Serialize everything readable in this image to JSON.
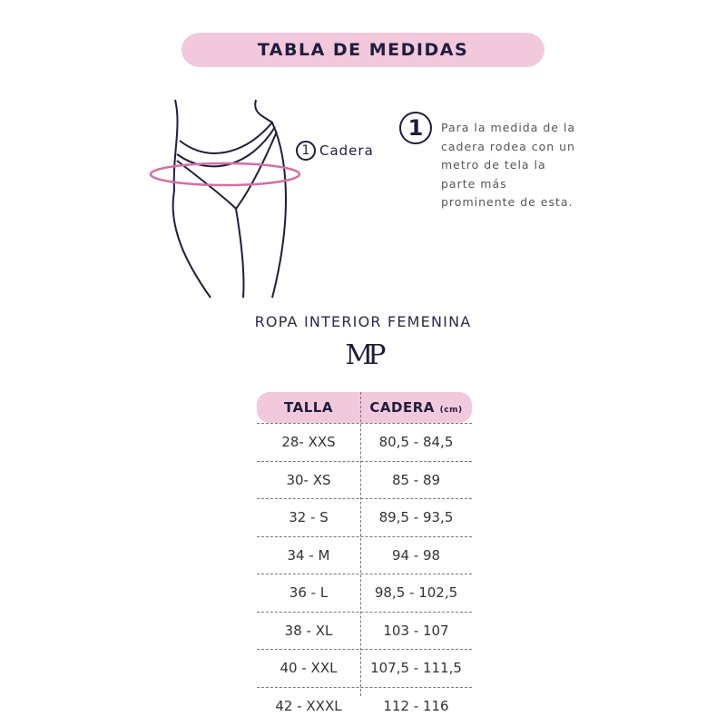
{
  "title": "TABLA DE MEDIDAS",
  "diagram": {
    "marker": "1",
    "label": "Cadera"
  },
  "instruction": {
    "number": "1",
    "text": "Para la medida de la cadera rodea con un metro de tela la parte más prominente de esta."
  },
  "subtitle": "ROPA INTERIOR FEMENINA",
  "logo": "MP",
  "table": {
    "headers": [
      "TALLA",
      "CADERA"
    ],
    "unit": "(cm)",
    "rows": [
      [
        "28-  XXS",
        "80,5 -  84,5"
      ],
      [
        "30-   XS",
        "85 -  89"
      ],
      [
        "32 -  S",
        "89,5 - 93,5"
      ],
      [
        "34 -   M",
        "94 - 98"
      ],
      [
        "36 -  L",
        "98,5 - 102,5"
      ],
      [
        "38 -  XL",
        "103 - 107"
      ],
      [
        "40 -  XXL",
        "107,5 - 111,5"
      ],
      [
        "42 -  XXXL",
        "112 - 116"
      ]
    ]
  },
  "colors": {
    "pink": "#f2c9dc",
    "navy": "#1f1d3d",
    "measure_ring": "#d56ea6"
  }
}
